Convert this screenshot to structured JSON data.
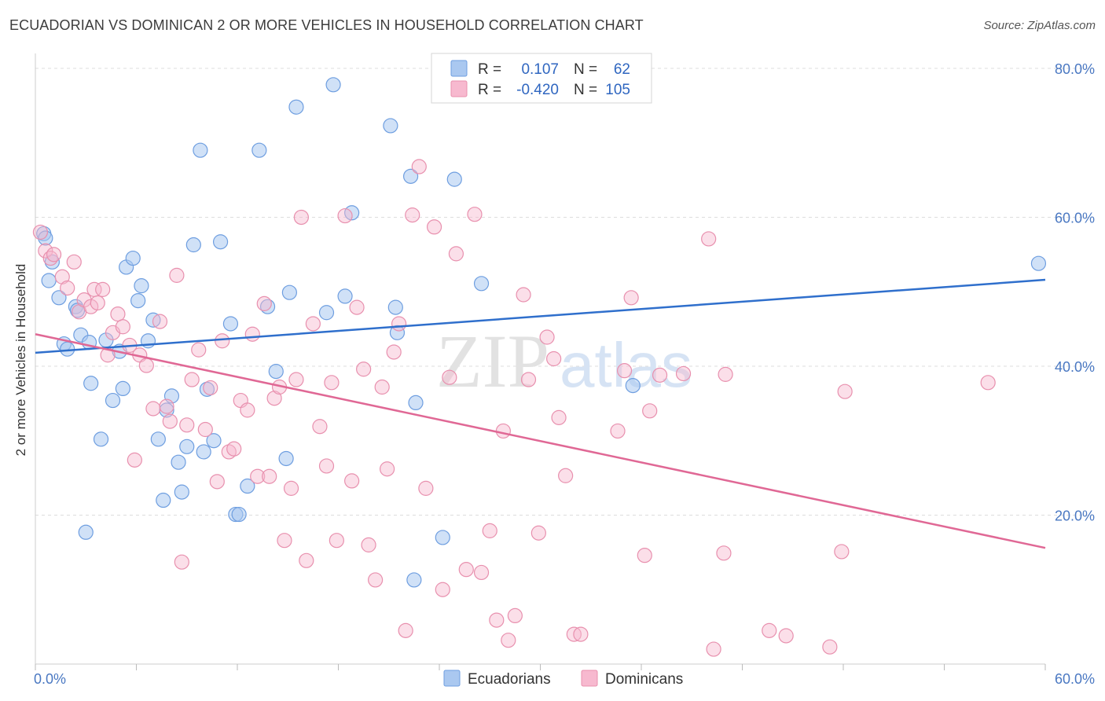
{
  "title": "ECUADORIAN VS DOMINICAN 2 OR MORE VEHICLES IN HOUSEHOLD CORRELATION CHART",
  "source": "Source: ZipAtlas.com",
  "colors": {
    "ecuadorian_fill": "#aac8f0",
    "ecuadorian_stroke": "#6e9ee0",
    "ecuadorian_line": "#2f6fcc",
    "dominican_fill": "#f7b9cf",
    "dominican_stroke": "#e890ae",
    "dominican_line": "#e06895",
    "tick_text": "#4a78c2",
    "grid": "#dddddd"
  },
  "legend": {
    "r_label": "R =",
    "n_label": "N =",
    "rows": [
      {
        "r": "0.107",
        "n": "62"
      },
      {
        "r": "-0.420",
        "n": "105"
      }
    ]
  },
  "watermark": {
    "zip": "ZIP",
    "atlas": "atlas"
  },
  "chart_data": {
    "type": "scatter",
    "xlabel": "",
    "ylabel": "2 or more Vehicles in Household",
    "xlim": [
      0,
      60
    ],
    "ylim": [
      0,
      82
    ],
    "x_tick_labels": [
      "0.0%",
      "60.0%"
    ],
    "y_ticks": [
      20,
      40,
      60,
      80
    ],
    "y_tick_labels": [
      "20.0%",
      "40.0%",
      "60.0%",
      "80.0%"
    ],
    "grid": true,
    "legend_position": "top-center",
    "series": [
      {
        "name": "Ecuadorians",
        "r": 0.107,
        "n": 62,
        "trend": [
          [
            0,
            41.8
          ],
          [
            60,
            51.6
          ]
        ],
        "points": [
          [
            0.5,
            57.8
          ],
          [
            0.6,
            57.2
          ],
          [
            0.8,
            51.5
          ],
          [
            1.0,
            54.0
          ],
          [
            1.4,
            49.2
          ],
          [
            1.7,
            43.0
          ],
          [
            1.9,
            42.3
          ],
          [
            2.4,
            48.0
          ],
          [
            2.5,
            47.5
          ],
          [
            2.7,
            44.2
          ],
          [
            3.0,
            17.7
          ],
          [
            3.2,
            43.2
          ],
          [
            3.3,
            37.7
          ],
          [
            3.9,
            30.2
          ],
          [
            4.2,
            43.5
          ],
          [
            4.6,
            35.4
          ],
          [
            5.0,
            42.0
          ],
          [
            5.2,
            37.0
          ],
          [
            5.4,
            53.3
          ],
          [
            5.8,
            54.5
          ],
          [
            6.1,
            48.8
          ],
          [
            6.3,
            50.8
          ],
          [
            6.7,
            43.4
          ],
          [
            7.0,
            46.2
          ],
          [
            7.3,
            30.2
          ],
          [
            7.6,
            22.0
          ],
          [
            7.8,
            34.1
          ],
          [
            8.1,
            36.0
          ],
          [
            8.5,
            27.1
          ],
          [
            8.7,
            23.1
          ],
          [
            9.0,
            29.2
          ],
          [
            9.4,
            56.3
          ],
          [
            9.8,
            69.0
          ],
          [
            10.0,
            28.5
          ],
          [
            10.2,
            36.9
          ],
          [
            10.6,
            30.0
          ],
          [
            11.0,
            56.7
          ],
          [
            11.6,
            45.7
          ],
          [
            11.9,
            20.1
          ],
          [
            12.1,
            20.1
          ],
          [
            12.6,
            23.9
          ],
          [
            13.3,
            69.0
          ],
          [
            13.8,
            48.0
          ],
          [
            14.3,
            39.3
          ],
          [
            14.9,
            27.6
          ],
          [
            15.1,
            49.9
          ],
          [
            15.5,
            74.8
          ],
          [
            17.3,
            47.2
          ],
          [
            17.7,
            77.8
          ],
          [
            18.4,
            49.4
          ],
          [
            18.8,
            60.6
          ],
          [
            21.1,
            72.3
          ],
          [
            21.4,
            47.9
          ],
          [
            21.5,
            44.5
          ],
          [
            22.3,
            65.5
          ],
          [
            22.6,
            35.1
          ],
          [
            22.5,
            11.3
          ],
          [
            24.2,
            17.0
          ],
          [
            24.9,
            65.1
          ],
          [
            26.5,
            51.1
          ],
          [
            35.5,
            37.4
          ],
          [
            59.6,
            53.8
          ]
        ]
      },
      {
        "name": "Dominicans",
        "r": -0.42,
        "n": 105,
        "trend": [
          [
            0,
            44.3
          ],
          [
            60,
            15.6
          ]
        ],
        "points": [
          [
            0.3,
            58.0
          ],
          [
            0.6,
            55.5
          ],
          [
            0.9,
            54.5
          ],
          [
            1.1,
            55.0
          ],
          [
            1.6,
            52.0
          ],
          [
            1.9,
            50.5
          ],
          [
            2.3,
            54.0
          ],
          [
            2.6,
            47.3
          ],
          [
            2.9,
            48.9
          ],
          [
            3.3,
            48.0
          ],
          [
            3.5,
            50.3
          ],
          [
            3.7,
            48.5
          ],
          [
            4.0,
            50.3
          ],
          [
            4.3,
            41.5
          ],
          [
            4.6,
            44.5
          ],
          [
            4.9,
            47.0
          ],
          [
            5.2,
            45.3
          ],
          [
            5.6,
            42.8
          ],
          [
            5.9,
            27.4
          ],
          [
            6.2,
            41.5
          ],
          [
            6.6,
            40.1
          ],
          [
            7.0,
            34.3
          ],
          [
            7.4,
            46.0
          ],
          [
            7.8,
            34.6
          ],
          [
            8.0,
            32.6
          ],
          [
            8.4,
            52.2
          ],
          [
            8.7,
            13.7
          ],
          [
            9.0,
            32.1
          ],
          [
            9.3,
            38.2
          ],
          [
            9.7,
            42.2
          ],
          [
            10.1,
            31.5
          ],
          [
            10.4,
            37.1
          ],
          [
            10.8,
            24.5
          ],
          [
            11.1,
            43.4
          ],
          [
            11.5,
            28.5
          ],
          [
            11.8,
            28.9
          ],
          [
            12.2,
            35.4
          ],
          [
            12.6,
            34.1
          ],
          [
            12.9,
            44.3
          ],
          [
            13.2,
            25.2
          ],
          [
            13.6,
            48.4
          ],
          [
            13.9,
            25.2
          ],
          [
            14.2,
            35.7
          ],
          [
            14.5,
            37.2
          ],
          [
            14.8,
            16.6
          ],
          [
            15.2,
            23.6
          ],
          [
            15.5,
            38.2
          ],
          [
            15.8,
            60.0
          ],
          [
            16.1,
            13.9
          ],
          [
            16.5,
            45.7
          ],
          [
            16.9,
            31.9
          ],
          [
            17.3,
            26.6
          ],
          [
            17.6,
            37.8
          ],
          [
            17.9,
            16.6
          ],
          [
            18.4,
            60.2
          ],
          [
            18.8,
            24.6
          ],
          [
            19.1,
            47.9
          ],
          [
            19.5,
            39.6
          ],
          [
            19.8,
            16.0
          ],
          [
            20.2,
            11.3
          ],
          [
            20.6,
            37.2
          ],
          [
            20.9,
            26.2
          ],
          [
            21.3,
            41.9
          ],
          [
            21.6,
            45.7
          ],
          [
            22.0,
            4.5
          ],
          [
            22.4,
            60.3
          ],
          [
            22.8,
            66.8
          ],
          [
            23.2,
            23.6
          ],
          [
            23.7,
            58.7
          ],
          [
            24.2,
            10.0
          ],
          [
            24.6,
            38.5
          ],
          [
            25.0,
            55.1
          ],
          [
            25.6,
            12.7
          ],
          [
            26.1,
            60.4
          ],
          [
            26.5,
            12.3
          ],
          [
            27.0,
            17.9
          ],
          [
            27.4,
            5.9
          ],
          [
            27.8,
            31.3
          ],
          [
            28.1,
            3.2
          ],
          [
            28.5,
            6.5
          ],
          [
            29.0,
            49.6
          ],
          [
            29.3,
            38.2
          ],
          [
            29.9,
            17.6
          ],
          [
            30.4,
            43.9
          ],
          [
            30.8,
            41.0
          ],
          [
            31.1,
            33.1
          ],
          [
            31.5,
            25.3
          ],
          [
            32.0,
            4.0
          ],
          [
            32.4,
            4.0
          ],
          [
            34.6,
            31.3
          ],
          [
            35.0,
            39.4
          ],
          [
            35.4,
            49.2
          ],
          [
            36.2,
            14.6
          ],
          [
            36.5,
            34.0
          ],
          [
            37.1,
            38.8
          ],
          [
            38.5,
            39.0
          ],
          [
            40.0,
            57.1
          ],
          [
            40.3,
            2.0
          ],
          [
            40.9,
            14.9
          ],
          [
            41.0,
            38.9
          ],
          [
            43.6,
            4.5
          ],
          [
            44.6,
            3.8
          ],
          [
            47.2,
            2.3
          ],
          [
            47.9,
            15.1
          ],
          [
            48.1,
            36.6
          ],
          [
            56.6,
            37.8
          ]
        ]
      }
    ]
  }
}
